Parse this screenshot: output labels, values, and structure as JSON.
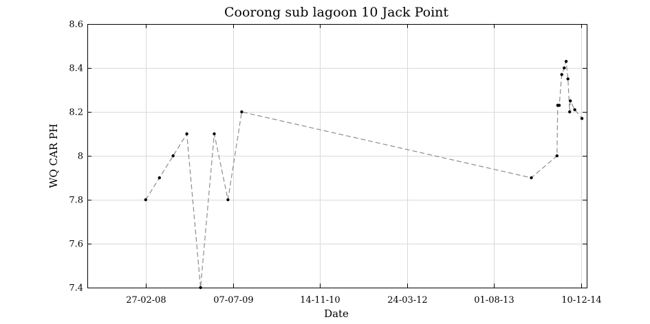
{
  "chart_data": {
    "type": "line",
    "title": "Coorong sub lagoon 10 Jack Point",
    "xlabel": "Date",
    "ylabel": "WQ CAR PH",
    "x_is_date": true,
    "xlim": [
      "2007-04-01",
      "2015-01-10"
    ],
    "ylim": [
      7.4,
      8.6
    ],
    "x_ticks": [
      {
        "date": "2008-02-27",
        "label": "27-02-08"
      },
      {
        "date": "2009-07-07",
        "label": "07-07-09"
      },
      {
        "date": "2010-11-14",
        "label": "14-11-10"
      },
      {
        "date": "2012-03-24",
        "label": "24-03-12"
      },
      {
        "date": "2013-08-01",
        "label": "01-08-13"
      },
      {
        "date": "2014-12-10",
        "label": "10-12-14"
      }
    ],
    "y_ticks": [
      {
        "value": 7.4,
        "label": "7.4"
      },
      {
        "value": 7.6,
        "label": "7.6"
      },
      {
        "value": 7.8,
        "label": "7.8"
      },
      {
        "value": 8.0,
        "label": "8"
      },
      {
        "value": 8.2,
        "label": "8.2"
      },
      {
        "value": 8.4,
        "label": "8.4"
      },
      {
        "value": 8.6,
        "label": "8.6"
      }
    ],
    "grid": true,
    "line_style": "dashed",
    "line_color": "#8c8c8c",
    "marker_color": "#000000",
    "series": [
      {
        "points": [
          {
            "x": "2008-02-27",
            "y": 7.8
          },
          {
            "x": "2008-05-15",
            "y": 7.9
          },
          {
            "x": "2008-08-01",
            "y": 8.0
          },
          {
            "x": "2008-10-18",
            "y": 8.1
          },
          {
            "x": "2009-01-04",
            "y": 7.4
          },
          {
            "x": "2009-03-23",
            "y": 8.1
          },
          {
            "x": "2009-06-09",
            "y": 7.8
          },
          {
            "x": "2009-08-26",
            "y": 8.2
          },
          {
            "x": "2014-03-01",
            "y": 7.9
          },
          {
            "x": "2014-07-25",
            "y": 8.0
          },
          {
            "x": "2014-07-29",
            "y": 8.23
          },
          {
            "x": "2014-08-07",
            "y": 8.23
          },
          {
            "x": "2014-08-21",
            "y": 8.37
          },
          {
            "x": "2014-09-04",
            "y": 8.4
          },
          {
            "x": "2014-09-15",
            "y": 8.43
          },
          {
            "x": "2014-09-25",
            "y": 8.35
          },
          {
            "x": "2014-10-05",
            "y": 8.2
          },
          {
            "x": "2014-10-09",
            "y": 8.25
          },
          {
            "x": "2014-11-03",
            "y": 8.21
          },
          {
            "x": "2014-12-14",
            "y": 8.17
          }
        ]
      }
    ]
  }
}
